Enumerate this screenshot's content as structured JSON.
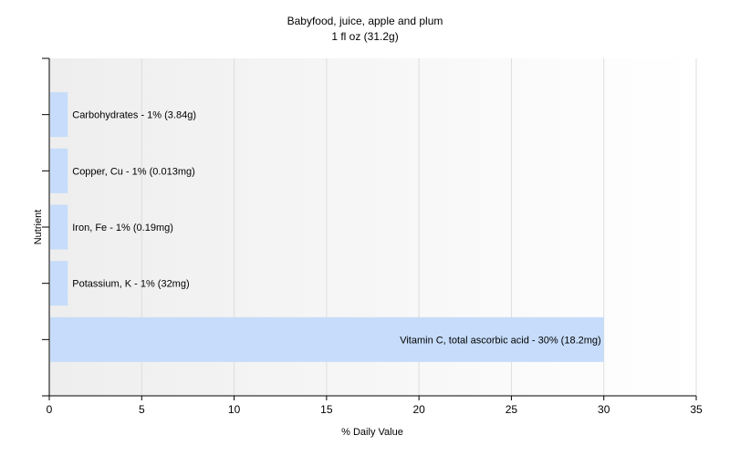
{
  "chart_data": {
    "type": "bar",
    "orientation": "horizontal",
    "title": "Babyfood, juice, apple and plum",
    "subtitle": "1 fl oz (31.2g)",
    "xlabel": "% Daily Value",
    "ylabel": "Nutrient",
    "xlim": [
      0,
      35
    ],
    "xticks": [
      0,
      5,
      10,
      15,
      20,
      25,
      30,
      35
    ],
    "grid": true,
    "bar_color": "#c6dcfa",
    "categories": [
      "Carbohydrates",
      "Copper, Cu",
      "Iron, Fe",
      "Potassium, K",
      "Vitamin C, total ascorbic acid"
    ],
    "values": [
      1,
      1,
      1,
      1,
      30
    ],
    "data_labels": [
      "Carbohydrates - 1% (3.84g)",
      "Copper, Cu - 1% (0.013mg)",
      "Iron, Fe - 1% (0.19mg)",
      "Potassium, K - 1% (32mg)",
      "Vitamin C, total ascorbic acid - 30% (18.2mg)"
    ]
  }
}
